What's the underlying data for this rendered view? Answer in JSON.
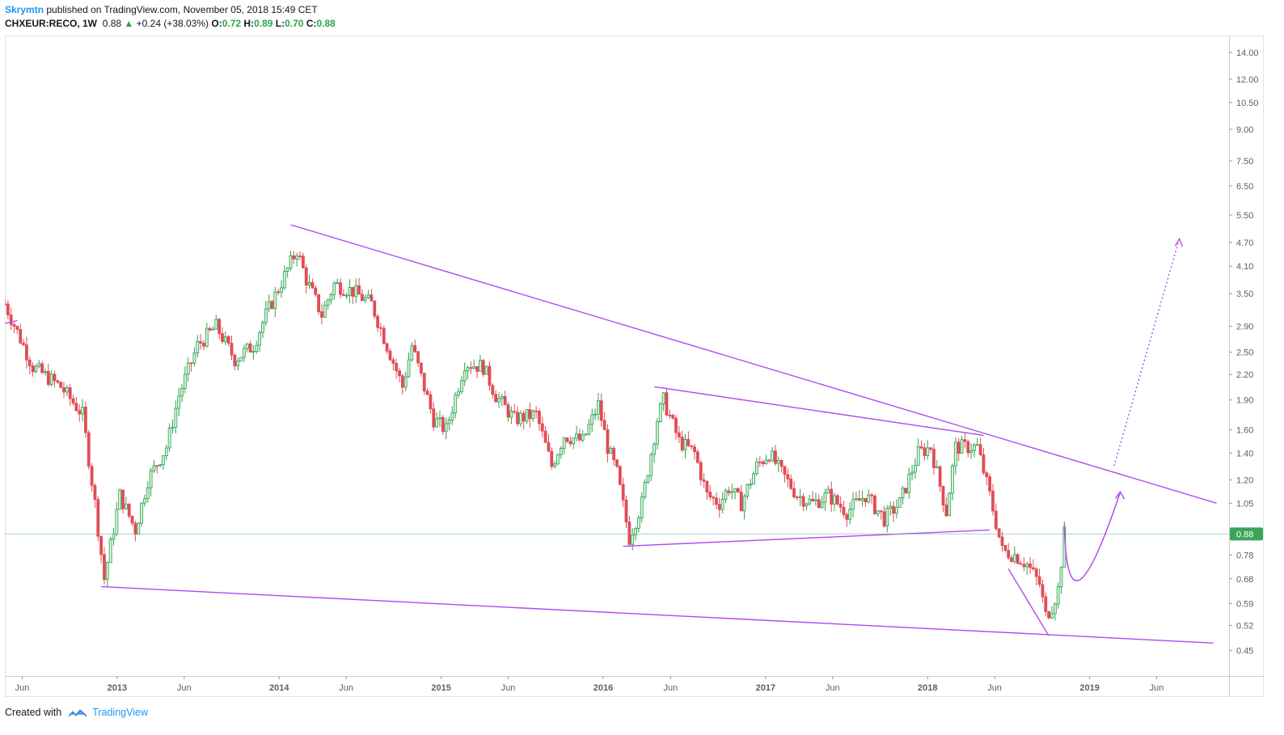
{
  "header": {
    "author": "Skrymtn",
    "published_text": "published on TradingView.com, November 05, 2018 15:49 CET",
    "symbol": "CHXEUR:RECO, 1W",
    "last": "0.88",
    "change": "+0.24 (+38.03%)",
    "open_label": "O:",
    "open": "0.72",
    "high_label": "H:",
    "high": "0.89",
    "low_label": "L:",
    "low": "0.70",
    "close_label": "C:",
    "close": "0.88"
  },
  "footer": {
    "created_with": "Created with",
    "brand": "TradingView"
  },
  "colors": {
    "up": "#2ca24d",
    "up_fill": "#d6f0dc",
    "down": "#e04d57",
    "trendline": "#b14aed",
    "price_line": "#6bb8a8",
    "axis_text": "#5d606b",
    "price_tag": "#3ba55c"
  },
  "chart_data": {
    "type": "candlestick",
    "symbol": "CHXEUR:RECO",
    "interval": "1W",
    "y_scale": "log",
    "ylim": [
      0.4,
      15.0
    ],
    "x_range": [
      "2012-04-23",
      "2019-11-11"
    ],
    "y_ticks": [
      14.0,
      12.0,
      10.5,
      9.0,
      7.5,
      6.5,
      5.5,
      4.7,
      4.1,
      3.5,
      2.9,
      2.5,
      2.2,
      1.9,
      1.6,
      1.4,
      1.2,
      1.05,
      0.88,
      0.78,
      0.68,
      0.59,
      0.52,
      0.45
    ],
    "y_tick_labels": [
      "14.00",
      "12.00",
      "10.50",
      "9.00",
      "7.50",
      "6.50",
      "5.50",
      "4.70",
      "4.10",
      "3.50",
      "2.90",
      "2.50",
      "2.20",
      "1.90",
      "1.60",
      "1.40",
      "1.20",
      "1.05",
      "",
      "0.78",
      "0.68",
      "0.59",
      "0.52",
      "0.45"
    ],
    "x_ticks": [
      {
        "label": "Jun",
        "date": "2012-06-01"
      },
      {
        "label": "2013",
        "date": "2013-01-01"
      },
      {
        "label": "Jun",
        "date": "2013-06-01"
      },
      {
        "label": "2014",
        "date": "2014-01-01"
      },
      {
        "label": "Jun",
        "date": "2014-06-01"
      },
      {
        "label": "2015",
        "date": "2015-01-01"
      },
      {
        "label": "Jun",
        "date": "2015-06-01"
      },
      {
        "label": "2016",
        "date": "2016-01-01"
      },
      {
        "label": "Jun",
        "date": "2016-06-01"
      },
      {
        "label": "2017",
        "date": "2017-01-01"
      },
      {
        "label": "Jun",
        "date": "2017-06-01"
      },
      {
        "label": "2018",
        "date": "2018-01-01"
      },
      {
        "label": "Jun",
        "date": "2018-06-01"
      },
      {
        "label": "2019",
        "date": "2019-01-01"
      },
      {
        "label": "Jun",
        "date": "2019-06-01"
      }
    ],
    "last_price": 0.88,
    "last_price_label": "0.88",
    "anchors": [
      [
        "2012-04-23",
        3.3
      ],
      [
        "2012-06-25",
        2.3
      ],
      [
        "2012-08-27",
        2.05
      ],
      [
        "2012-10-15",
        1.75
      ],
      [
        "2012-11-12",
        1.05
      ],
      [
        "2012-12-03",
        0.68
      ],
      [
        "2013-01-07",
        1.1
      ],
      [
        "2013-02-11",
        0.9
      ],
      [
        "2013-03-11",
        1.2
      ],
      [
        "2013-04-22",
        1.45
      ],
      [
        "2013-05-20",
        1.95
      ],
      [
        "2013-07-01",
        2.6
      ],
      [
        "2013-08-12",
        2.9
      ],
      [
        "2013-09-23",
        2.4
      ],
      [
        "2013-11-04",
        2.6
      ],
      [
        "2013-12-02",
        3.1
      ],
      [
        "2014-02-10",
        4.5
      ],
      [
        "2014-03-03",
        3.8
      ],
      [
        "2014-04-07",
        3.1
      ],
      [
        "2014-05-05",
        3.7
      ],
      [
        "2014-06-16",
        3.55
      ],
      [
        "2014-07-28",
        3.3
      ],
      [
        "2014-09-01",
        2.6
      ],
      [
        "2014-10-06",
        2.05
      ],
      [
        "2014-10-27",
        2.6
      ],
      [
        "2014-12-15",
        1.7
      ],
      [
        "2015-01-12",
        1.6
      ],
      [
        "2015-02-23",
        2.35
      ],
      [
        "2015-04-06",
        2.3
      ],
      [
        "2015-05-04",
        1.95
      ],
      [
        "2015-06-15",
        1.7
      ],
      [
        "2015-08-03",
        1.75
      ],
      [
        "2015-09-07",
        1.3
      ],
      [
        "2015-10-05",
        1.55
      ],
      [
        "2015-11-16",
        1.5
      ],
      [
        "2015-12-21",
        1.85
      ],
      [
        "2016-01-11",
        1.45
      ],
      [
        "2016-02-01",
        1.25
      ],
      [
        "2016-02-29",
        0.86
      ],
      [
        "2016-03-28",
        1.05
      ],
      [
        "2016-05-02",
        1.7
      ],
      [
        "2016-05-16",
        1.9
      ],
      [
        "2016-06-20",
        1.5
      ],
      [
        "2016-07-25",
        1.4
      ],
      [
        "2016-08-22",
        1.1
      ],
      [
        "2016-09-19",
        1.05
      ],
      [
        "2016-10-10",
        1.15
      ],
      [
        "2016-11-07",
        1.05
      ],
      [
        "2016-12-12",
        1.3
      ],
      [
        "2017-01-09",
        1.4
      ],
      [
        "2017-02-06",
        1.25
      ],
      [
        "2017-03-13",
        1.1
      ],
      [
        "2017-04-17",
        1.05
      ],
      [
        "2017-05-22",
        1.1
      ],
      [
        "2017-07-03",
        1.0
      ],
      [
        "2017-08-14",
        1.1
      ],
      [
        "2017-09-25",
        0.96
      ],
      [
        "2017-10-30",
        1.05
      ],
      [
        "2017-12-11",
        1.4
      ],
      [
        "2018-01-08",
        1.45
      ],
      [
        "2018-02-12",
        1.0
      ],
      [
        "2018-03-05",
        1.45
      ],
      [
        "2018-04-23",
        1.45
      ],
      [
        "2018-05-21",
        1.1
      ],
      [
        "2018-06-18",
        0.8
      ],
      [
        "2018-07-16",
        0.78
      ],
      [
        "2018-08-13",
        0.74
      ],
      [
        "2018-09-10",
        0.66
      ],
      [
        "2018-09-24",
        0.55
      ],
      [
        "2018-10-08",
        0.58
      ],
      [
        "2018-10-22",
        0.64
      ],
      [
        "2018-11-05",
        0.88
      ]
    ],
    "trendlines": [
      {
        "from": [
          "2014-01-27",
          5.2
        ],
        "to": [
          "2019-10-14",
          1.05
        ]
      },
      {
        "from": [
          "2016-04-25",
          2.05
        ],
        "to": [
          "2018-05-07",
          1.55
        ]
      },
      {
        "from": [
          "2016-02-15",
          0.82
        ],
        "to": [
          "2018-05-21",
          0.9
        ]
      },
      {
        "from": [
          "2012-11-26",
          0.65
        ],
        "to": [
          "2019-10-07",
          0.47
        ]
      },
      {
        "from": [
          "2018-07-02",
          0.72
        ],
        "to": [
          "2018-10-01",
          0.49
        ]
      },
      {
        "from": [
          "2012-04-23",
          2.95
        ],
        "to": [
          "2012-05-21",
          3.0
        ]
      }
    ],
    "projection_curve": [
      [
        "2018-11-05",
        0.93
      ],
      [
        "2018-12-03",
        0.68
      ],
      [
        "2019-03-11",
        1.12
      ]
    ],
    "projection_arrow": {
      "from": [
        "2019-02-25",
        1.3
      ],
      "to": [
        "2019-07-22",
        4.8
      ]
    }
  }
}
